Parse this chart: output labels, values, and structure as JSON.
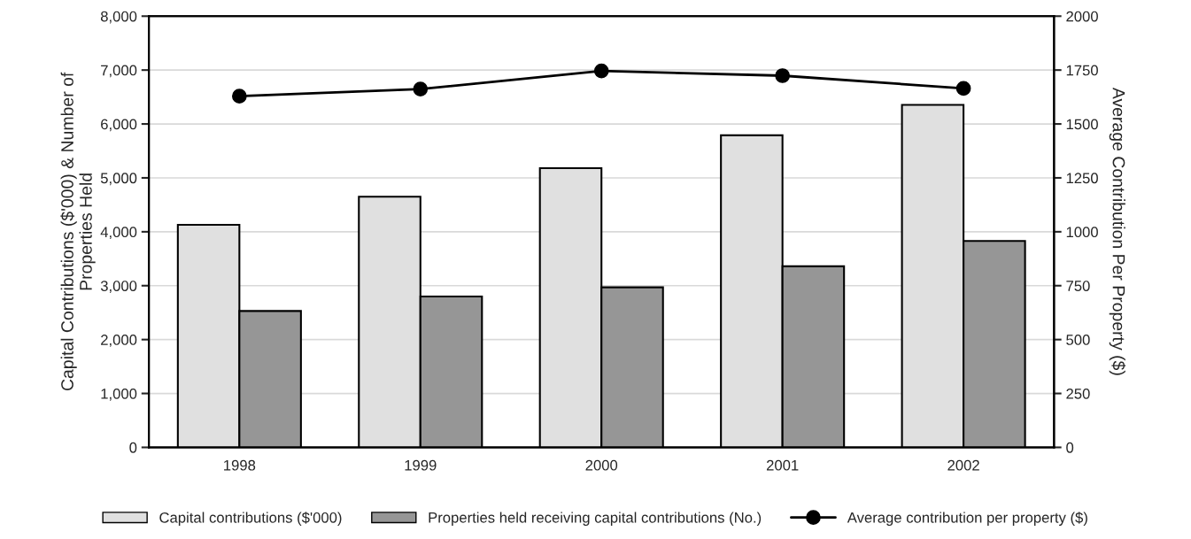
{
  "chart_data": {
    "type": "bar",
    "categories": [
      "1998",
      "1999",
      "2000",
      "2001",
      "2002"
    ],
    "ylabel": "Capital Contributions ($'000) & Number of\nProperties Held",
    "y2label": "Average Contribution Per Property ($)",
    "series": [
      {
        "name": "Capital contributions ($'000)",
        "color": "#e0e0e0",
        "values": [
          4130,
          4650,
          5180,
          5790,
          6355
        ]
      },
      {
        "name": "Properties held receiving capital contributions (No.)",
        "color": "#969696",
        "values": [
          2530,
          2800,
          2970,
          3360,
          3830
        ]
      },
      {
        "name": "Average contribution per property ($)",
        "type": "line",
        "axis": "y2",
        "color": "#000000",
        "marker": "circle",
        "values": [
          1629,
          1662,
          1746,
          1724,
          1665
        ]
      }
    ],
    "ylim": [
      0,
      8000
    ],
    "yticks": [
      {
        "value": 0,
        "label": "0"
      },
      {
        "value": 1000,
        "label": "1,000"
      },
      {
        "value": 2000,
        "label": "2,000"
      },
      {
        "value": 3000,
        "label": "3,000"
      },
      {
        "value": 4000,
        "label": "4,000"
      },
      {
        "value": 5000,
        "label": "5,000"
      },
      {
        "value": 6000,
        "label": "6,000"
      },
      {
        "value": 7000,
        "label": "7,000"
      },
      {
        "value": 8000,
        "label": "8,000"
      }
    ],
    "y2lim": [
      0,
      2000
    ],
    "y2ticks": [
      0,
      250,
      500,
      750,
      1000,
      1250,
      1500,
      1750,
      2000
    ],
    "grid": "y",
    "legend": "bottom"
  }
}
